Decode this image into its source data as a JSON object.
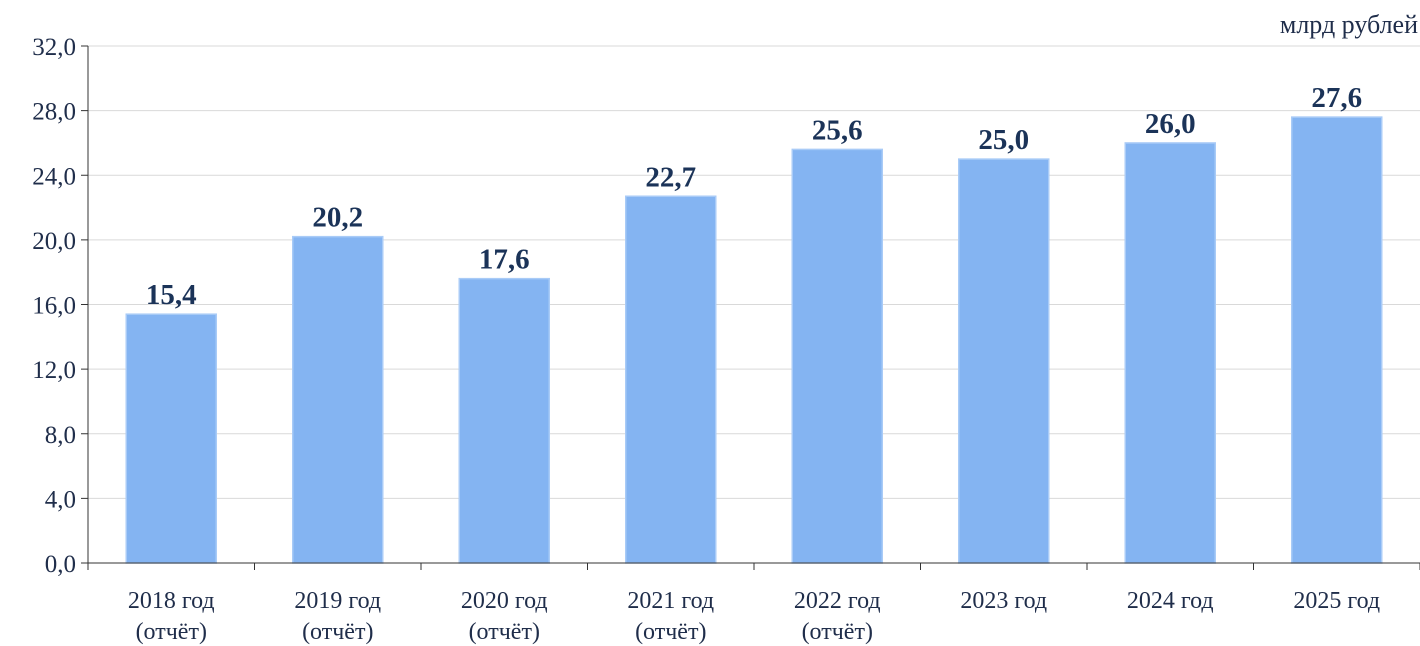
{
  "chart_data": {
    "type": "bar",
    "unit_label": "млрд рублей",
    "categories": [
      [
        "2018 год",
        "(отчёт)"
      ],
      [
        "2019 год",
        "(отчёт)"
      ],
      [
        "2020 год",
        "(отчёт)"
      ],
      [
        "2021 год",
        "(отчёт)"
      ],
      [
        "2022 год",
        "(отчёт)"
      ],
      [
        "2023 год"
      ],
      [
        "2024 год"
      ],
      [
        "2025 год"
      ]
    ],
    "values": [
      15.4,
      20.2,
      17.6,
      22.7,
      25.6,
      25.0,
      26.0,
      27.6
    ],
    "value_labels": [
      "15,4",
      "20,2",
      "17,6",
      "22,7",
      "25,6",
      "25,0",
      "26,0",
      "27,6"
    ],
    "yticks": [
      "0,0",
      "4,0",
      "8,0",
      "12,0",
      "16,0",
      "20,0",
      "24,0",
      "28,0",
      "32,0"
    ],
    "ylim": [
      0,
      32
    ],
    "ytick_step": 4,
    "grid": true,
    "legend": "none",
    "bar_color": "#84b4f2",
    "axis_color": "#333333",
    "grid_color": "#d9d9d9",
    "label_color": "#1b3358"
  }
}
